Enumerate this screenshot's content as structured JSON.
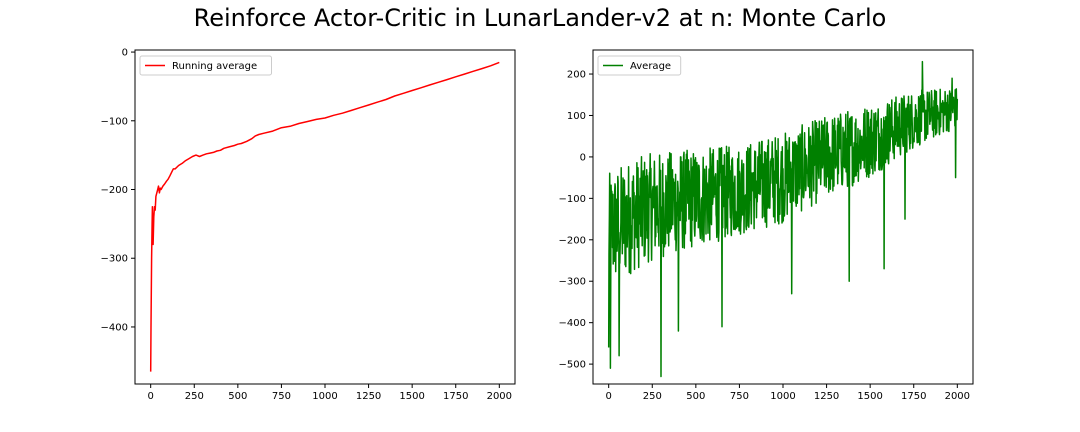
{
  "figure": {
    "title": "Reinforce Actor-Critic in LunarLander-v2 at n: Monte Carlo"
  },
  "chart_data": [
    {
      "type": "line",
      "title": "",
      "xlabel": "",
      "ylabel": "",
      "xlim": [
        -90,
        2090
      ],
      "ylim": [
        -483,
        3
      ],
      "xticks": [
        0,
        250,
        500,
        750,
        1000,
        1250,
        1500,
        1750,
        2000
      ],
      "xtick_labels": [
        "0",
        "250",
        "500",
        "750",
        "1000",
        "1250",
        "1500",
        "1750",
        "2000"
      ],
      "yticks": [
        0,
        -100,
        -200,
        -300,
        -400
      ],
      "ytick_labels": [
        "0",
        "−100",
        "−200",
        "−300",
        "−400"
      ],
      "legend": {
        "position": "top-left"
      },
      "grid": false,
      "series": [
        {
          "name": "Running average",
          "color": "#ff0000",
          "x": [
            0,
            2,
            5,
            8,
            10,
            14,
            18,
            22,
            26,
            30,
            35,
            40,
            45,
            50,
            55,
            60,
            70,
            80,
            90,
            100,
            110,
            120,
            130,
            140,
            160,
            180,
            200,
            220,
            240,
            260,
            280,
            300,
            320,
            340,
            360,
            380,
            400,
            420,
            450,
            480,
            500,
            520,
            550,
            580,
            600,
            620,
            650,
            700,
            750,
            800,
            850,
            900,
            950,
            1000,
            1050,
            1100,
            1150,
            1200,
            1250,
            1300,
            1350,
            1400,
            1450,
            1500,
            1550,
            1600,
            1650,
            1700,
            1750,
            1800,
            1850,
            1900,
            1950,
            2000
          ],
          "values": [
            -465,
            -400,
            -300,
            -250,
            -225,
            -280,
            -240,
            -225,
            -230,
            -210,
            -205,
            -200,
            -195,
            -205,
            -198,
            -200,
            -195,
            -192,
            -188,
            -185,
            -180,
            -175,
            -170,
            -170,
            -165,
            -162,
            -158,
            -155,
            -152,
            -150,
            -152,
            -150,
            -148,
            -147,
            -146,
            -144,
            -143,
            -140,
            -138,
            -136,
            -134,
            -133,
            -130,
            -126,
            -122,
            -120,
            -118,
            -115,
            -110,
            -108,
            -104,
            -101,
            -98,
            -96,
            -92,
            -89,
            -85,
            -81,
            -77,
            -73,
            -69,
            -64,
            -60,
            -56,
            -52,
            -48,
            -44,
            -40,
            -36,
            -32,
            -28,
            -24,
            -20,
            -15
          ]
        }
      ]
    },
    {
      "type": "line",
      "title": "",
      "xlabel": "",
      "ylabel": "",
      "xlim": [
        -90,
        2090
      ],
      "ylim": [
        -548,
        258
      ],
      "xticks": [
        0,
        250,
        500,
        750,
        1000,
        1250,
        1500,
        1750,
        2000
      ],
      "xtick_labels": [
        "0",
        "250",
        "500",
        "750",
        "1000",
        "1250",
        "1500",
        "1750",
        "2000"
      ],
      "yticks": [
        200,
        100,
        0,
        -100,
        -200,
        -300,
        -400,
        -500
      ],
      "ytick_labels": [
        "200",
        "100",
        "0",
        "−100",
        "−200",
        "−300",
        "−400",
        "−500"
      ],
      "legend": {
        "position": "top-left"
      },
      "grid": false,
      "series": [
        {
          "name": "Average",
          "color": "#008000",
          "trend_x": [
            0,
            100,
            250,
            500,
            750,
            1000,
            1250,
            1500,
            1750,
            2000
          ],
          "trend_mean": [
            -180,
            -150,
            -120,
            -100,
            -80,
            -50,
            0,
            40,
            90,
            120
          ],
          "trend_spread": [
            140,
            140,
            130,
            120,
            110,
            110,
            100,
            90,
            70,
            50
          ],
          "notable_points": [
            {
              "x": 0,
              "y": -460
            },
            {
              "x": 10,
              "y": -510
            },
            {
              "x": 60,
              "y": -480
            },
            {
              "x": 300,
              "y": -530
            },
            {
              "x": 400,
              "y": -420
            },
            {
              "x": 650,
              "y": -410
            },
            {
              "x": 1050,
              "y": -330
            },
            {
              "x": 1380,
              "y": -300
            },
            {
              "x": 1580,
              "y": -270
            },
            {
              "x": 1700,
              "y": -150
            },
            {
              "x": 1800,
              "y": 230
            },
            {
              "x": 1970,
              "y": 190
            },
            {
              "x": 1990,
              "y": -50
            },
            {
              "x": 2000,
              "y": 140
            }
          ]
        }
      ]
    }
  ]
}
